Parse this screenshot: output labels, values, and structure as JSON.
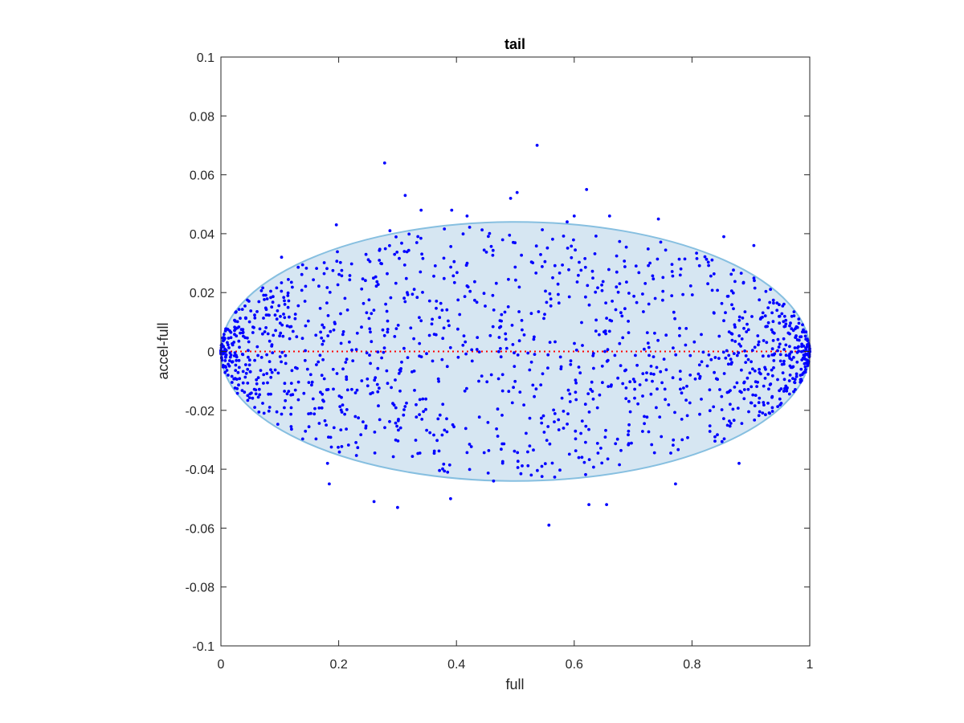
{
  "chart_data": {
    "type": "scatter",
    "title": "tail",
    "xlabel": "full",
    "ylabel": "accel-full",
    "xlim": [
      0,
      1
    ],
    "ylim": [
      -0.1,
      0.1
    ],
    "xticks": [
      0,
      0.2,
      0.4,
      0.6,
      0.8,
      1
    ],
    "xtick_labels": [
      "0",
      "0.2",
      "0.4",
      "0.6",
      "0.8",
      "1"
    ],
    "yticks": [
      0.1,
      0.08,
      0.06,
      0.04,
      0.02,
      0,
      -0.02,
      -0.04,
      -0.06,
      -0.08,
      -0.1
    ],
    "ytick_labels": [
      "0.1",
      "0.08",
      "0.06",
      "0.04",
      "0.02",
      "0",
      "-0.02",
      "-0.04",
      "-0.06",
      "-0.08",
      "-0.1"
    ],
    "grid": false,
    "colors": {
      "points": "#0000ff",
      "ellipse_fill": "#d6e6f2",
      "ellipse_stroke": "#86bfe0",
      "zero_line": "#ff0000",
      "axes": "#262626"
    },
    "ellipse": {
      "center": [
        0.5,
        0
      ],
      "x_radius": 0.5,
      "y_radius": 0.044
    },
    "reference_line": {
      "y": 0,
      "style": "dotted"
    },
    "points": [
      [
        0.537,
        0.07
      ],
      [
        0.278,
        0.064
      ],
      [
        0.621,
        0.055
      ],
      [
        0.503,
        0.054
      ],
      [
        0.313,
        0.053
      ],
      [
        0.492,
        0.052
      ],
      [
        0.557,
        -0.059
      ],
      [
        0.3,
        -0.053
      ],
      [
        0.625,
        -0.052
      ],
      [
        0.655,
        -0.052
      ],
      [
        0.39,
        -0.05
      ],
      [
        0.26,
        -0.051
      ],
      [
        0.34,
        0.048
      ],
      [
        0.392,
        0.048
      ],
      [
        0.418,
        0.046
      ],
      [
        0.6,
        0.046
      ],
      [
        0.66,
        0.046
      ],
      [
        0.588,
        0.044
      ],
      [
        0.743,
        0.045
      ],
      [
        0.196,
        0.043
      ],
      [
        0.287,
        0.041
      ],
      [
        0.385,
        -0.041
      ],
      [
        0.184,
        -0.045
      ],
      [
        0.772,
        -0.045
      ],
      [
        0.854,
        0.039
      ],
      [
        0.103,
        0.032
      ],
      [
        0.905,
        0.036
      ],
      [
        0.181,
        -0.038
      ],
      [
        0.88,
        -0.038
      ],
      [
        0.463,
        -0.044
      ],
      [
        0.527,
        -0.042
      ]
    ],
    "cloud": {
      "count": 1400,
      "seed": 7,
      "edge_density": "higher near x=0 and x=1"
    }
  }
}
